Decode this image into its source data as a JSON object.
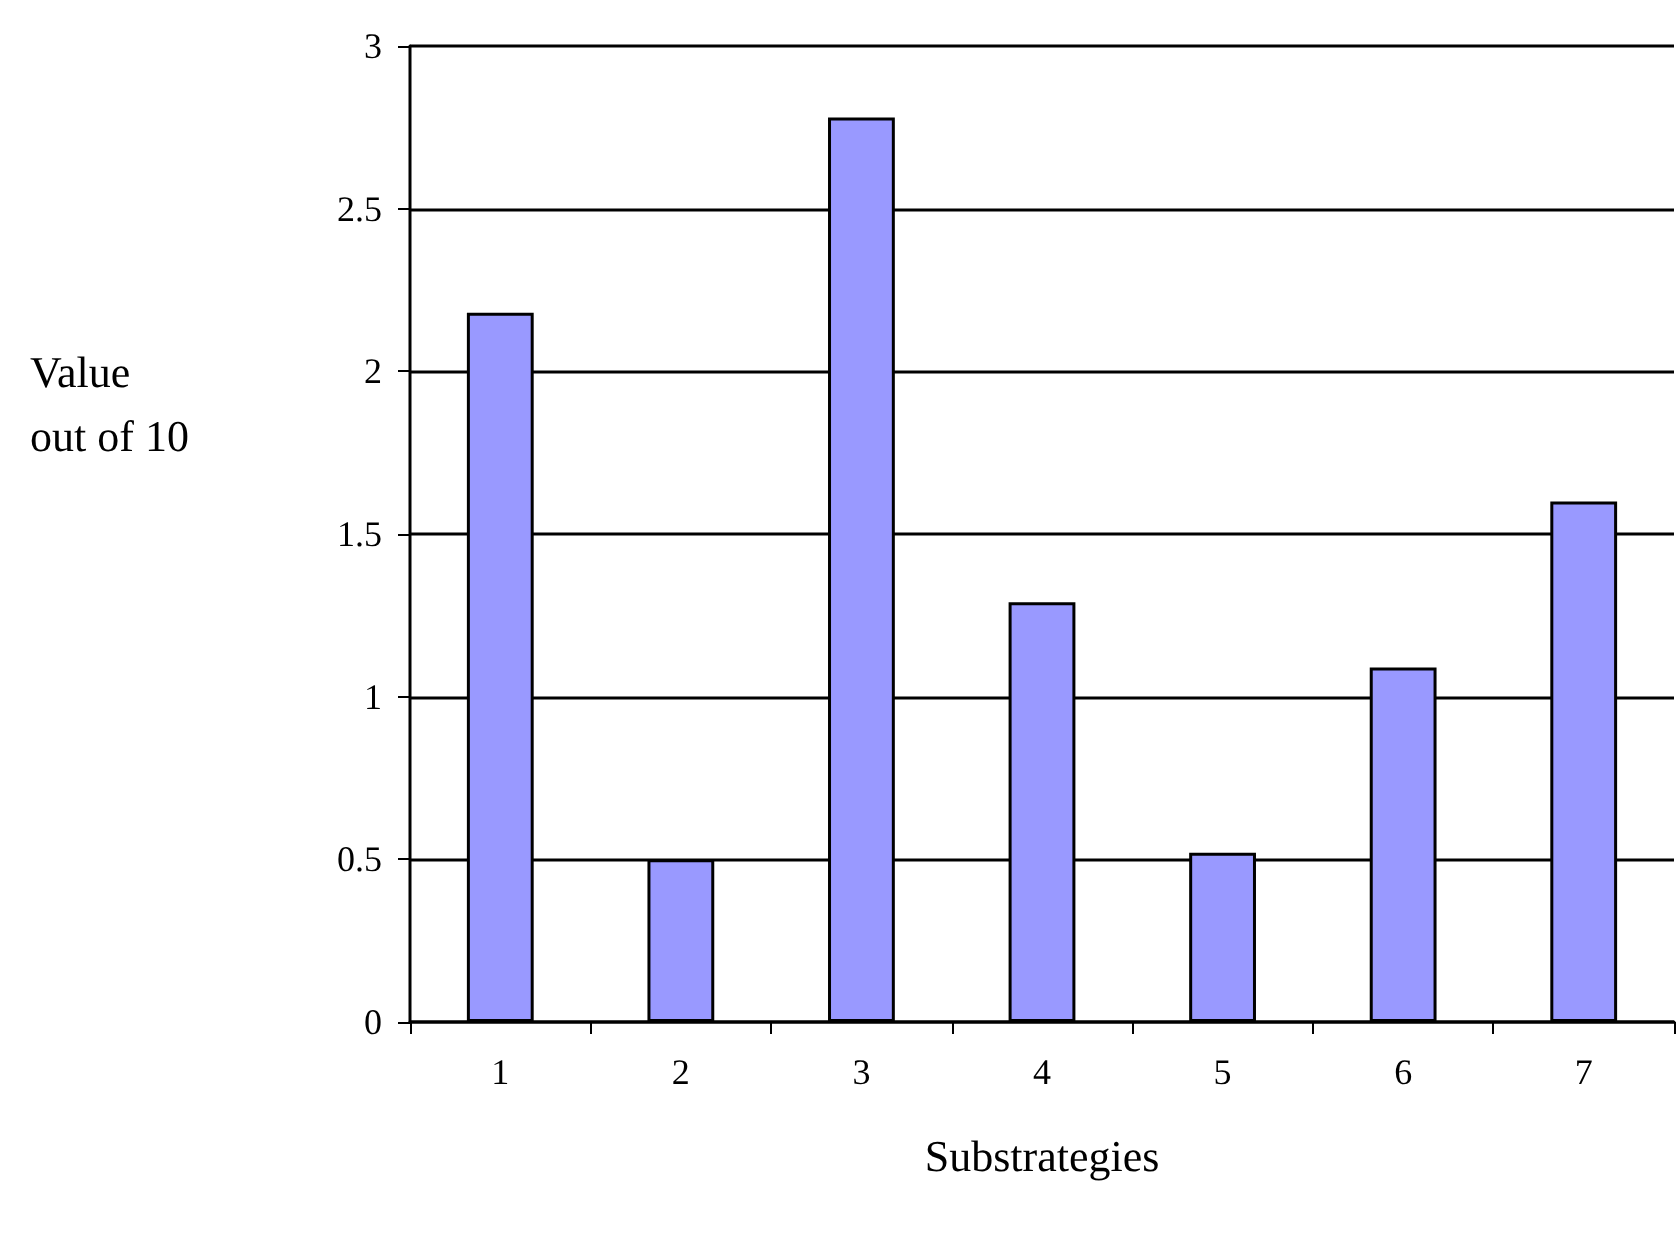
{
  "chart_data": {
    "type": "bar",
    "xlabel": "Substrategies",
    "ylabel": "Value\nout of 10",
    "categories": [
      "1",
      "2",
      "3",
      "4",
      "5",
      "6",
      "7"
    ],
    "values": [
      2.18,
      0.5,
      2.78,
      1.29,
      0.52,
      1.09,
      1.6
    ],
    "color": "#9999ff",
    "ylim": [
      0,
      3
    ],
    "yticks": [
      0,
      0.5,
      1,
      1.5,
      2,
      2.5,
      3
    ],
    "grid": "y"
  }
}
